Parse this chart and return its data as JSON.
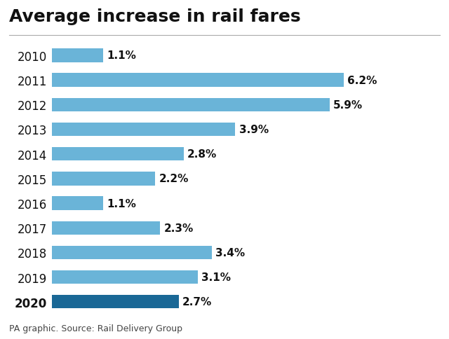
{
  "title": "Average increase in rail fares",
  "source": "PA graphic. Source: Rail Delivery Group",
  "years": [
    "2010",
    "2011",
    "2012",
    "2013",
    "2014",
    "2015",
    "2016",
    "2017",
    "2018",
    "2019",
    "2020"
  ],
  "values": [
    1.1,
    6.2,
    5.9,
    3.9,
    2.8,
    2.2,
    1.1,
    2.3,
    3.4,
    3.1,
    2.7
  ],
  "labels": [
    "1.1%",
    "6.2%",
    "5.9%",
    "3.9%",
    "2.8%",
    "2.2%",
    "1.1%",
    "2.3%",
    "3.4%",
    "3.1%",
    "2.7%"
  ],
  "bar_colors": [
    "#6ab4d8",
    "#6ab4d8",
    "#6ab4d8",
    "#6ab4d8",
    "#6ab4d8",
    "#6ab4d8",
    "#6ab4d8",
    "#6ab4d8",
    "#6ab4d8",
    "#6ab4d8",
    "#1a6896"
  ],
  "year_bold": [
    false,
    false,
    false,
    false,
    false,
    false,
    false,
    false,
    false,
    false,
    true
  ],
  "background_color": "#ffffff",
  "title_fontsize": 18,
  "label_fontsize": 11,
  "year_fontsize": 12,
  "source_fontsize": 9,
  "xlim": [
    0,
    7.2
  ]
}
